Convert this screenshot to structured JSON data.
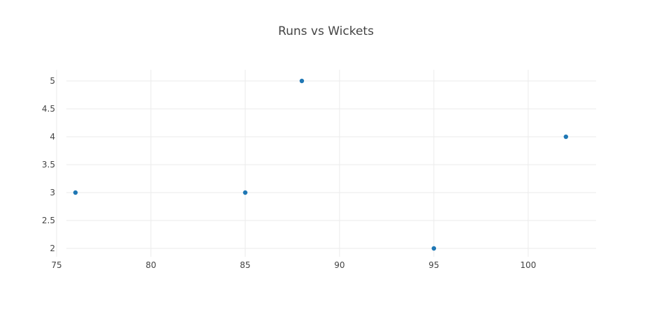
{
  "chart_data": {
    "type": "scatter",
    "title": "Runs vs Wickets",
    "xlabel": "",
    "ylabel": "",
    "xlim": [
      75,
      103.6
    ],
    "ylim": [
      1.85,
      5.2
    ],
    "x_ticks": [
      75,
      80,
      85,
      90,
      95,
      100
    ],
    "y_ticks": [
      2,
      2.5,
      3,
      3.5,
      4,
      4.5,
      5
    ],
    "x_tick_labels": [
      "75",
      "80",
      "85",
      "90",
      "95",
      "100"
    ],
    "y_tick_labels": [
      "2",
      "2.5",
      "3",
      "3.5",
      "4",
      "4.5",
      "5"
    ],
    "grid": true,
    "legend": "none",
    "marker_color": "#1f77b4",
    "points": [
      {
        "x": 76,
        "y": 3
      },
      {
        "x": 85,
        "y": 3
      },
      {
        "x": 88,
        "y": 5
      },
      {
        "x": 95,
        "y": 2
      },
      {
        "x": 102,
        "y": 4
      }
    ]
  }
}
